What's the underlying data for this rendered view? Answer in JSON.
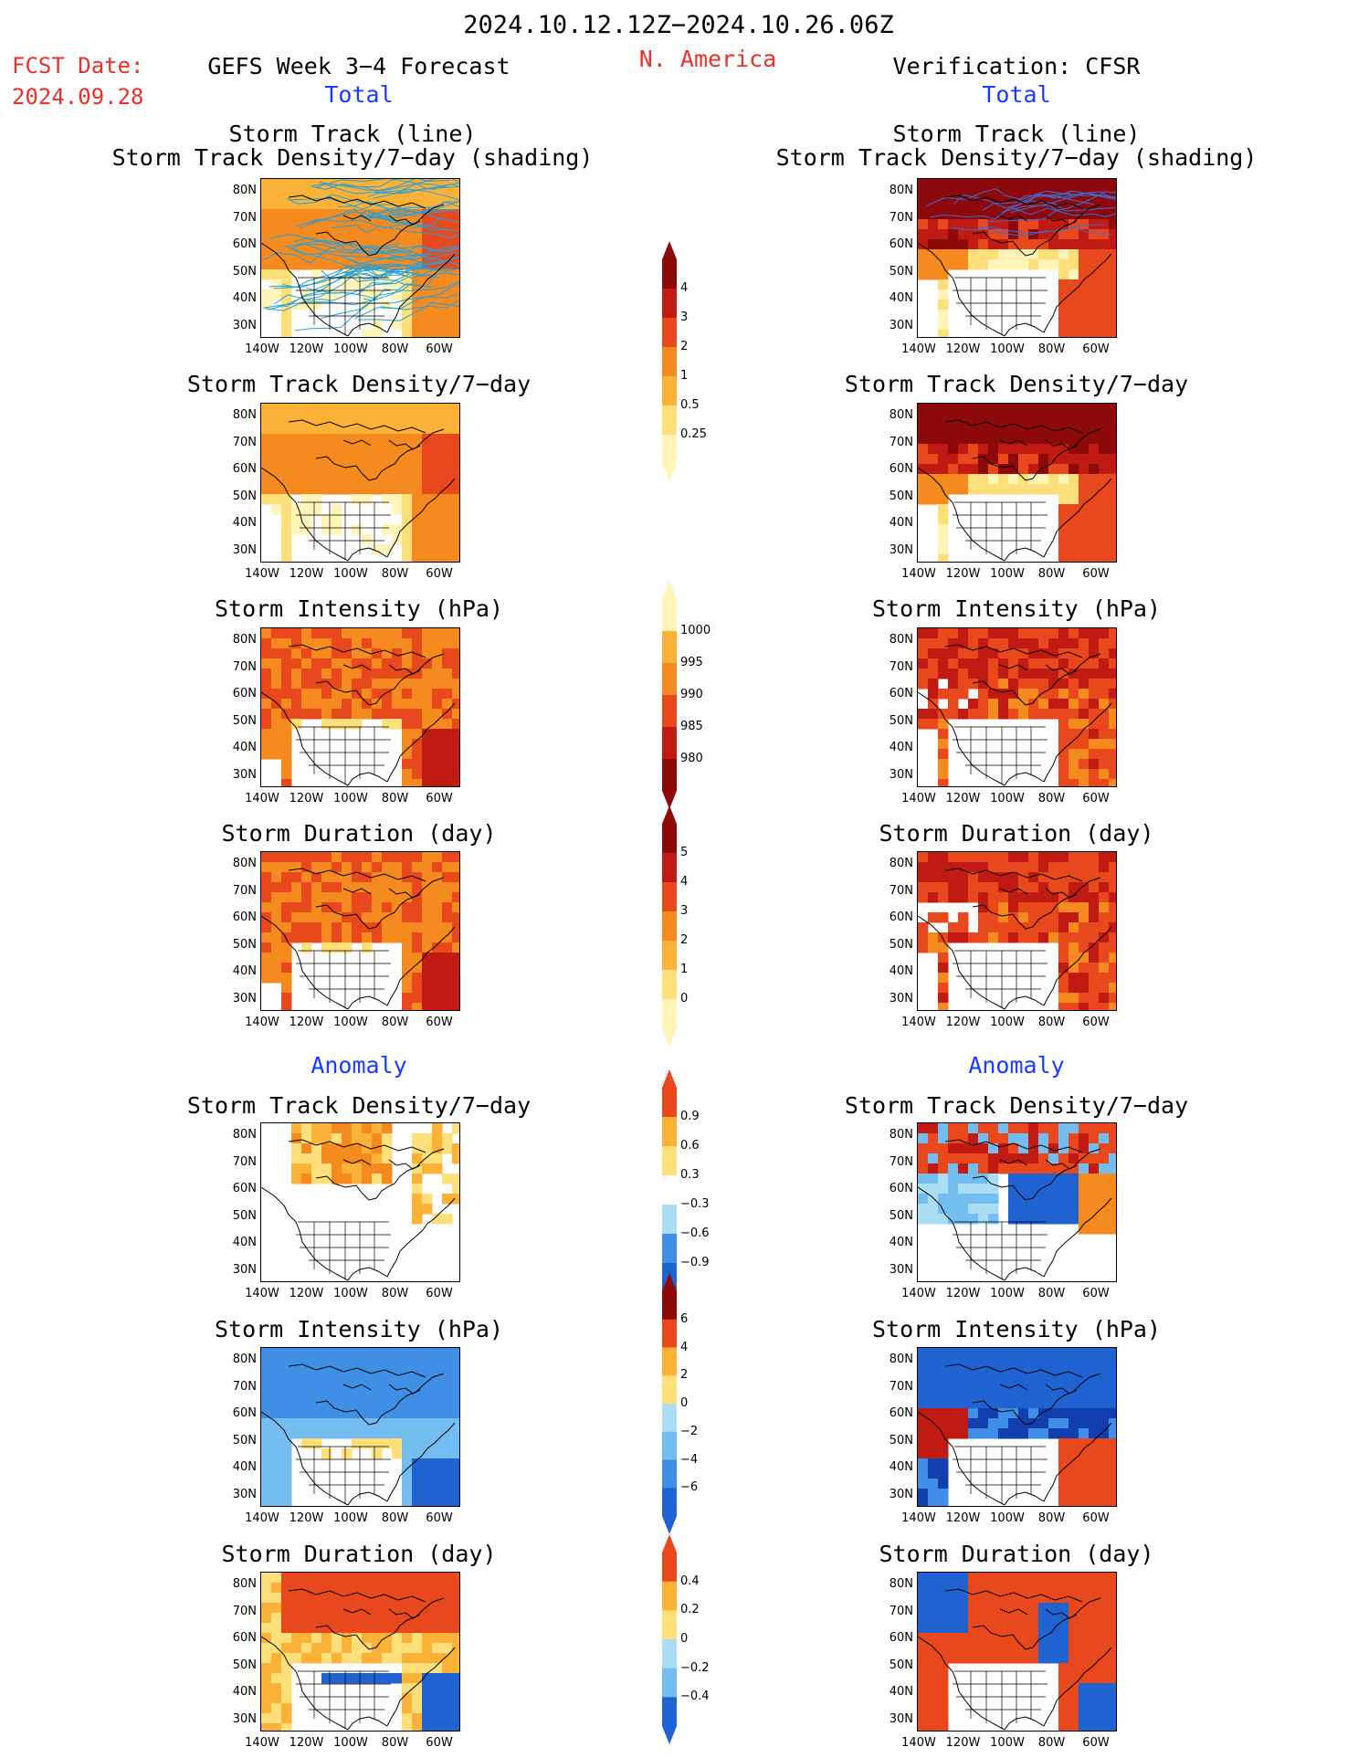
{
  "header": {
    "period": "2024.10.12.12Z−2024.10.26.06Z",
    "region": "N. America",
    "fcst_label": "FCST Date:",
    "fcst_date": "2024.09.28",
    "left_title": "GEFS Week 3−4 Forecast",
    "right_title": "Verification: CFSR",
    "total_label": "Total",
    "anomaly_label": "Anomaly"
  },
  "panel_titles": {
    "track_line": "Storm Track (line)",
    "track_shading": "Storm Track Density/7−day (shading)",
    "density": "Storm Track Density/7−day",
    "intensity": "Storm Intensity (hPa)",
    "duration": "Storm Duration (day)"
  },
  "axes": {
    "lat_ticks": [
      "80N",
      "70N",
      "60N",
      "50N",
      "40N",
      "30N"
    ],
    "lon_ticks": [
      "140W",
      "120W",
      "100W",
      "80W",
      "60W"
    ]
  },
  "colorbars": {
    "density_total": [
      "4",
      "3",
      "2",
      "1",
      "0.5",
      "0.25"
    ],
    "intensity_total": [
      "1000",
      "995",
      "990",
      "985",
      "980"
    ],
    "duration_total": [
      "5",
      "4",
      "3",
      "2",
      "1",
      "0"
    ],
    "density_anom": [
      "0.9",
      "0.6",
      "0.3",
      "−0.3",
      "−0.6",
      "−0.9"
    ],
    "intensity_anom": [
      "6",
      "4",
      "2",
      "0",
      "−2",
      "−4",
      "−6"
    ],
    "duration_anom": [
      "0.4",
      "0.2",
      "0",
      "−0.2",
      "−0.4"
    ]
  },
  "colors": {
    "title_red": "#e8302c",
    "title_blue": "#1a3cff",
    "warm": [
      "#fff5b8",
      "#fde07a",
      "#fbb237",
      "#f58a1f",
      "#e8481c",
      "#c01a12",
      "#8e0a0a"
    ],
    "cool": [
      "#d8f3fb",
      "#a9def5",
      "#74bdf0",
      "#3f8fe6",
      "#1f63d3",
      "#123fb0"
    ],
    "track_fcst": "#2a9fd6",
    "track_obs": "#3a6fd8"
  },
  "chart_data": [
    {
      "type": "heatmap",
      "panel": "fcst-track",
      "title": "Storm Track (line) / Storm Track Density/7-day (shading)",
      "colorbar": [
        "0.25",
        "0.5",
        "1",
        "2",
        "3",
        "4"
      ],
      "domain_lat": [
        25,
        85
      ],
      "domain_lon": [
        -140,
        -50
      ]
    },
    {
      "type": "heatmap",
      "panel": "obs-track",
      "title": "Storm Track (line) / Storm Track Density/7-day (shading)",
      "colorbar": [
        "0.25",
        "0.5",
        "1",
        "2",
        "3",
        "4"
      ],
      "domain_lat": [
        25,
        85
      ],
      "domain_lon": [
        -140,
        -50
      ]
    },
    {
      "type": "heatmap",
      "panel": "fcst-density",
      "title": "Storm Track Density/7-day",
      "colorbar": [
        "0.25",
        "0.5",
        "1",
        "2",
        "3",
        "4"
      ]
    },
    {
      "type": "heatmap",
      "panel": "obs-density",
      "title": "Storm Track Density/7-day",
      "colorbar": [
        "0.25",
        "0.5",
        "1",
        "2",
        "3",
        "4"
      ]
    },
    {
      "type": "heatmap",
      "panel": "fcst-intensity",
      "title": "Storm Intensity (hPa)",
      "colorbar": [
        "980",
        "985",
        "990",
        "995",
        "1000"
      ]
    },
    {
      "type": "heatmap",
      "panel": "obs-intensity",
      "title": "Storm Intensity (hPa)",
      "colorbar": [
        "980",
        "985",
        "990",
        "995",
        "1000"
      ]
    },
    {
      "type": "heatmap",
      "panel": "fcst-duration",
      "title": "Storm Duration (day)",
      "colorbar": [
        "0",
        "1",
        "2",
        "3",
        "4",
        "5"
      ]
    },
    {
      "type": "heatmap",
      "panel": "obs-duration",
      "title": "Storm Duration (day)",
      "colorbar": [
        "0",
        "1",
        "2",
        "3",
        "4",
        "5"
      ]
    },
    {
      "type": "heatmap",
      "panel": "fcst-density-anom",
      "title": "Storm Track Density/7-day",
      "colorbar": [
        "-0.9",
        "-0.6",
        "-0.3",
        "0.3",
        "0.6",
        "0.9"
      ]
    },
    {
      "type": "heatmap",
      "panel": "obs-density-anom",
      "title": "Storm Track Density/7-day",
      "colorbar": [
        "-0.9",
        "-0.6",
        "-0.3",
        "0.3",
        "0.6",
        "0.9"
      ]
    },
    {
      "type": "heatmap",
      "panel": "fcst-intensity-anom",
      "title": "Storm Intensity (hPa)",
      "colorbar": [
        "-6",
        "-4",
        "-2",
        "0",
        "2",
        "4",
        "6"
      ]
    },
    {
      "type": "heatmap",
      "panel": "obs-intensity-anom",
      "title": "Storm Intensity (hPa)",
      "colorbar": [
        "-6",
        "-4",
        "-2",
        "0",
        "2",
        "4",
        "6"
      ]
    },
    {
      "type": "heatmap",
      "panel": "fcst-duration-anom",
      "title": "Storm Duration (day)",
      "colorbar": [
        "-0.4",
        "-0.2",
        "0",
        "0.2",
        "0.4"
      ]
    },
    {
      "type": "heatmap",
      "panel": "obs-duration-anom",
      "title": "Storm Duration (day)",
      "colorbar": [
        "-0.4",
        "-0.2",
        "0",
        "0.2",
        "0.4"
      ]
    }
  ]
}
